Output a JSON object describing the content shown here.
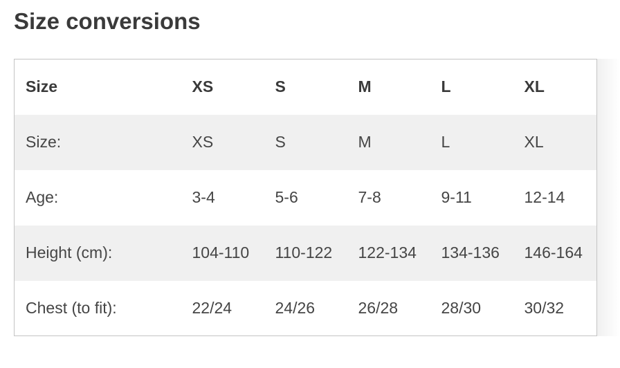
{
  "page": {
    "title": "Size conversions"
  },
  "table": {
    "columns": [
      "Size",
      "XS",
      "S",
      "M",
      "L",
      "XL"
    ],
    "rows": [
      {
        "label": "Size:",
        "values": [
          "XS",
          "S",
          "M",
          "L",
          "XL"
        ]
      },
      {
        "label": "Age:",
        "values": [
          "3-4",
          "5-6",
          "7-8",
          "9-11",
          "12-14"
        ]
      },
      {
        "label": "Height (cm):",
        "values": [
          "104-110",
          "110-122",
          "122-134",
          "134-136",
          "146-164"
        ]
      },
      {
        "label": "Chest (to fit):",
        "values": [
          "22/24",
          "24/26",
          "26/28",
          "28/30",
          "30/32"
        ]
      }
    ]
  },
  "colors": {
    "background": "#ffffff",
    "title_text": "#3a3a3a",
    "body_text": "#454545",
    "stripe": "#f0f0f0",
    "border": "#c4c4c4"
  }
}
